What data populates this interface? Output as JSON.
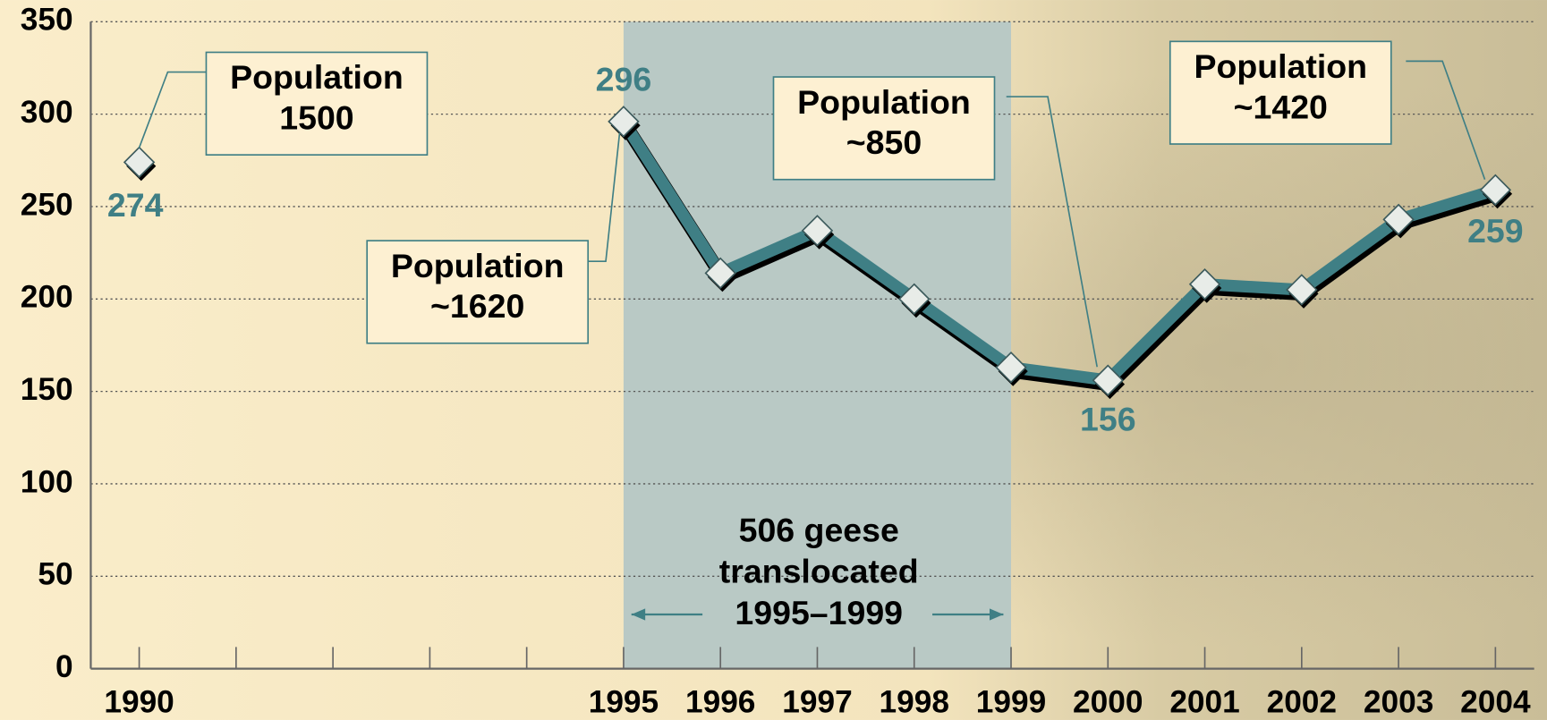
{
  "chart_data": {
    "type": "line",
    "x": [
      1990,
      1991,
      1992,
      1993,
      1994,
      1995,
      1996,
      1997,
      1998,
      1999,
      2000,
      2001,
      2002,
      2003,
      2004
    ],
    "series": [
      {
        "color": "#3f7f85",
        "values": [
          274,
          null,
          null,
          null,
          null,
          296,
          214,
          237,
          200,
          163,
          156,
          208,
          205,
          243,
          259
        ]
      }
    ],
    "xlim": [
      1989.5,
      2004.4
    ],
    "xticks": [
      1990,
      1995,
      1996,
      1997,
      1998,
      1999,
      2000,
      2001,
      2002,
      2003,
      2004
    ],
    "minor_xticks": [
      1991,
      1992,
      1993,
      1994
    ],
    "ylim": [
      0,
      350
    ],
    "yticks": [
      0,
      50,
      100,
      150,
      200,
      250,
      300,
      350
    ],
    "grid": true,
    "shaded_span": {
      "range": [
        1995,
        1999
      ],
      "color": "#b9c9c5",
      "lines": [
        "506 geese",
        "translocated",
        "1995–1999"
      ]
    },
    "annotations": [
      {
        "lines": [
          "Population",
          "1500"
        ]
      },
      {
        "lines": [
          "Population",
          "~1620"
        ]
      },
      {
        "lines": [
          "Population",
          "~850"
        ]
      },
      {
        "lines": [
          "Population",
          "~1420"
        ]
      }
    ]
  }
}
